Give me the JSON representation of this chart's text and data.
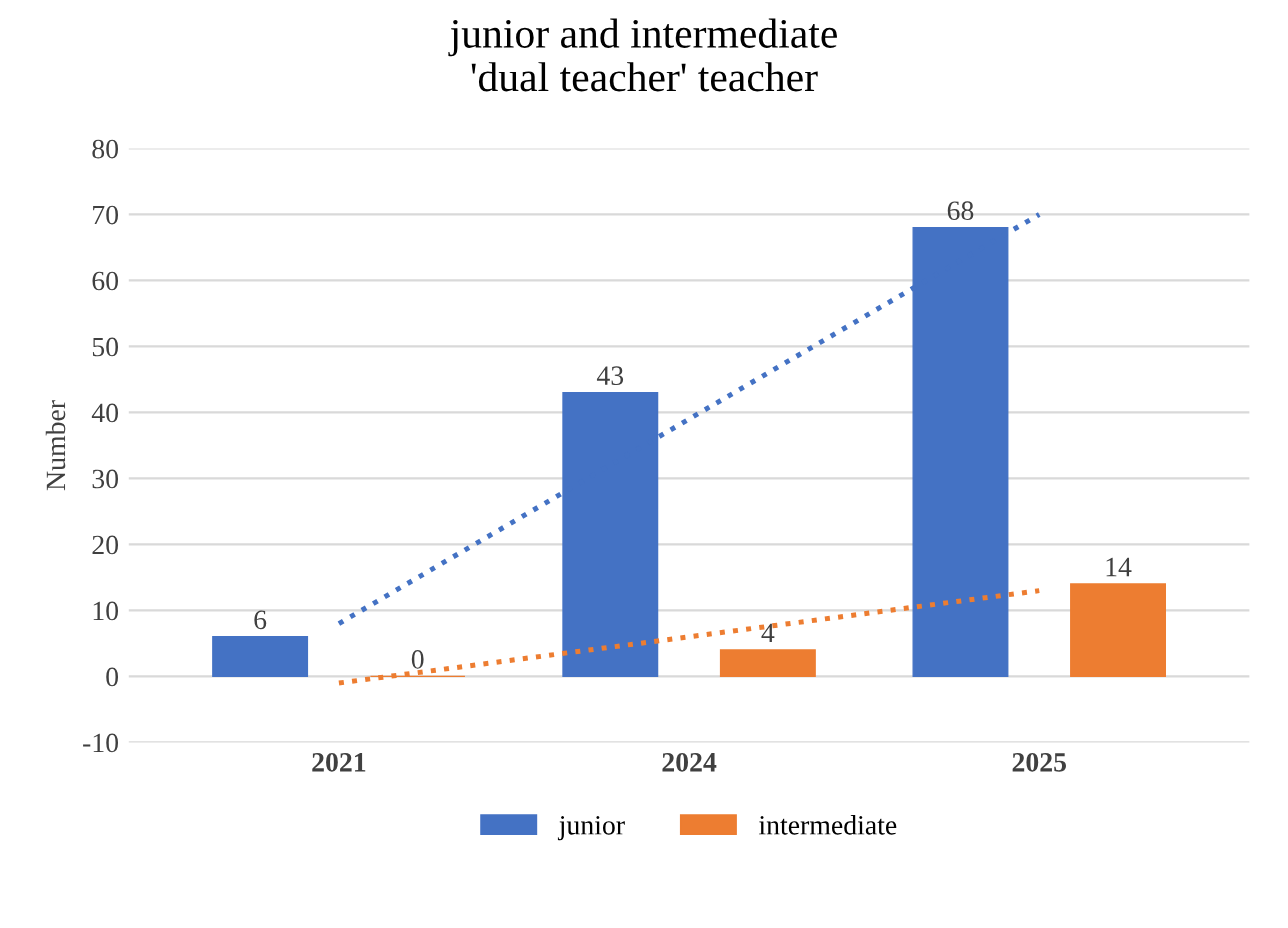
{
  "chart_data": {
    "type": "bar",
    "title": "junior and intermediate\n'dual teacher' teacher",
    "ylabel": "Number",
    "categories": [
      "2021",
      "2024",
      "2025"
    ],
    "series": [
      {
        "name": "junior",
        "color": "#4472c4",
        "values": [
          6,
          43,
          68
        ],
        "value_labels": [
          "6",
          "43",
          "68"
        ]
      },
      {
        "name": "intermediate",
        "color": "#ed7d31",
        "values": [
          0,
          4,
          14
        ],
        "value_labels": [
          "0",
          "4",
          "14"
        ]
      },
      {
        "type": "line",
        "color": "#4472c4",
        "values": [
          8,
          39,
          70
        ],
        "line_style": "dotted"
      },
      {
        "type": "line",
        "color": "#ed7d31",
        "values": [
          -1,
          6,
          13
        ],
        "line_style": "dotted"
      }
    ],
    "ylim": [
      -10,
      80
    ],
    "yticks": [
      -10,
      0,
      10,
      20,
      30,
      40,
      50,
      60,
      70,
      80
    ],
    "grid": "y",
    "legend": "bottom"
  }
}
